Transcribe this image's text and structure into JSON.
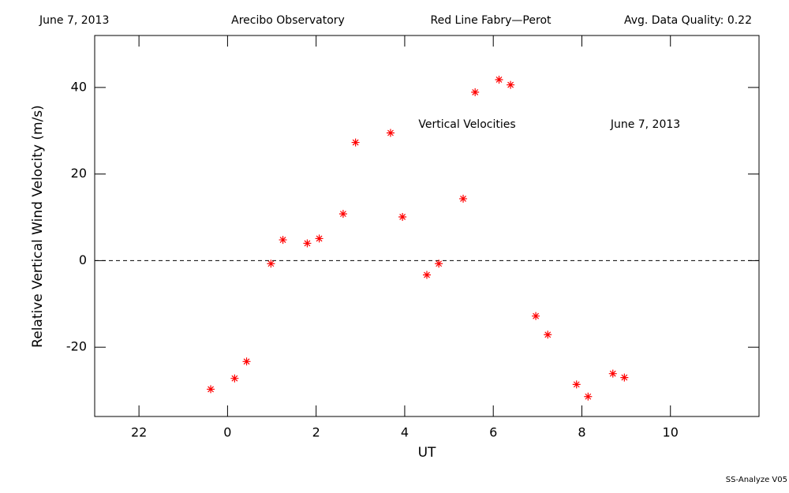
{
  "chart_data": {
    "type": "scatter",
    "header": [
      "June 7, 2013",
      "Arecibo Observatory",
      "Red Line Fabry—Perot",
      "Avg. Data Quality: 0.22"
    ],
    "annotations": [
      "Vertical Velocities",
      "June 7, 2013"
    ],
    "footer": "SS-Analyze V05",
    "xlabel": "UT",
    "ylabel": "Relative Vertical Wind Velocity (m/s)",
    "x": [
      -0.38,
      0.16,
      0.43,
      0.98,
      1.25,
      1.8,
      2.07,
      2.61,
      2.89,
      3.68,
      3.95,
      4.5,
      4.77,
      5.32,
      5.59,
      6.13,
      6.39,
      6.96,
      7.23,
      7.88,
      8.14,
      8.7,
      8.96
    ],
    "values": [
      -29.7,
      -27.2,
      -23.3,
      -0.7,
      4.8,
      4.0,
      5.1,
      10.8,
      27.3,
      29.5,
      10.1,
      -3.3,
      -0.7,
      14.3,
      38.9,
      41.8,
      40.6,
      -12.8,
      -17.1,
      -28.6,
      -31.4,
      -26.1,
      -27.0
    ],
    "color": "#ff0000",
    "xlim": [
      -3,
      12
    ],
    "xticks": [
      {
        "value": -2,
        "label": "22"
      },
      0,
      2,
      4,
      6,
      8,
      10
    ],
    "ylim": [
      -36,
      52
    ],
    "yticks": [
      -20,
      0,
      20,
      40
    ],
    "hline": 0
  }
}
